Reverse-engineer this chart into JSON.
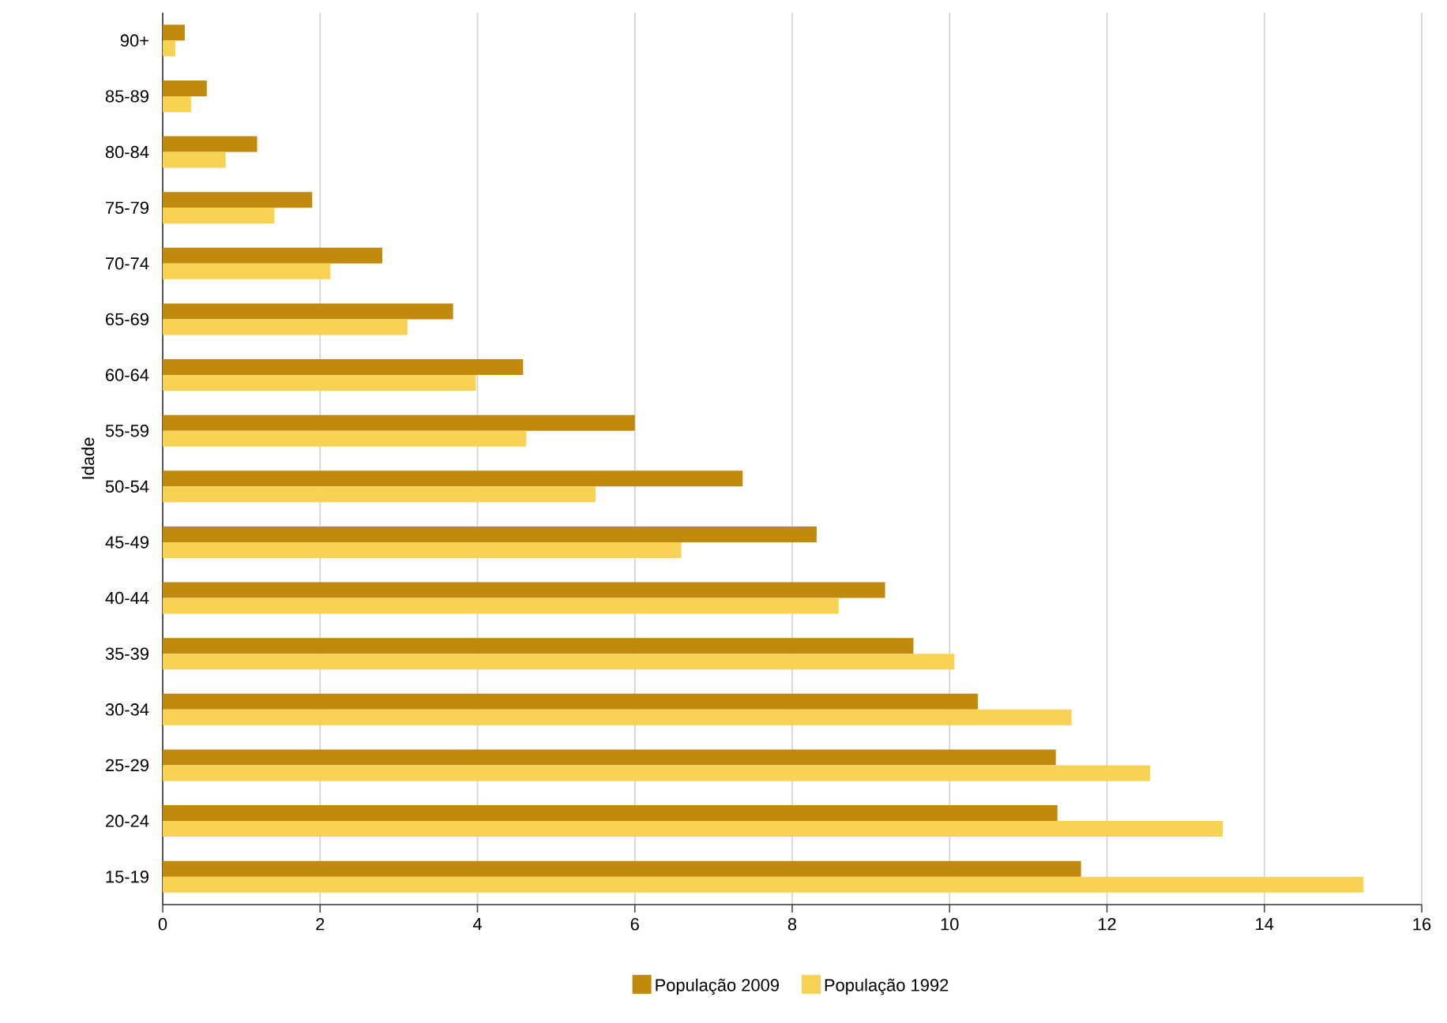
{
  "chart_data": {
    "type": "bar",
    "orientation": "horizontal",
    "ylabel": "Idade",
    "categories": [
      "90+",
      "85-89",
      "80-84",
      "75-79",
      "70-74",
      "65-69",
      "60-64",
      "55-59",
      "50-54",
      "45-49",
      "40-44",
      "35-39",
      "30-34",
      "25-29",
      "20-24",
      "15-19"
    ],
    "series": [
      {
        "name": "População 2009",
        "color": "#c28a0c",
        "values": [
          0.28,
          0.56,
          1.2,
          1.9,
          2.79,
          3.69,
          4.58,
          6.0,
          7.37,
          8.31,
          9.18,
          9.54,
          10.36,
          11.35,
          11.37,
          11.67
        ]
      },
      {
        "name": "População 1992",
        "color": "#f8d254",
        "values": [
          0.16,
          0.36,
          0.8,
          1.42,
          2.13,
          3.11,
          3.98,
          4.62,
          5.5,
          6.59,
          8.59,
          10.06,
          11.55,
          12.55,
          13.47,
          15.26
        ]
      }
    ],
    "xlim": [
      0,
      16
    ],
    "xticks": [
      0,
      2,
      4,
      6,
      8,
      10,
      12,
      14,
      16
    ],
    "grid": "x",
    "legend": "bottom"
  }
}
